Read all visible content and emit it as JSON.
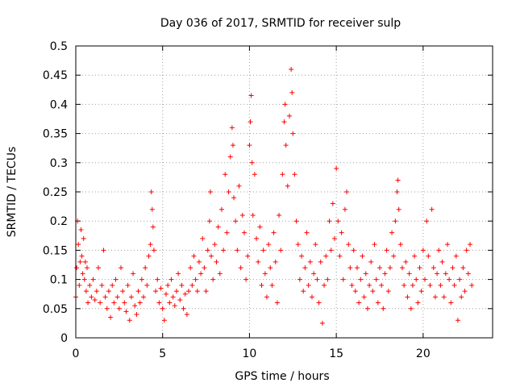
{
  "chart_data": {
    "type": "scatter",
    "title": "Day 036 of 2017, SRMTID for receiver sulp",
    "xlabel": "GPS time / hours",
    "ylabel": "SRMTID / TECUs",
    "xlim": [
      0,
      24
    ],
    "ylim": [
      0,
      0.5
    ],
    "x_ticks": [
      {
        "value": 0,
        "label": "0"
      },
      {
        "value": 5,
        "label": "5"
      },
      {
        "value": 10,
        "label": "10"
      },
      {
        "value": 15,
        "label": "15"
      },
      {
        "value": 20,
        "label": "20"
      }
    ],
    "y_ticks": [
      {
        "value": 0,
        "label": "0"
      },
      {
        "value": 0.05,
        "label": "0.05"
      },
      {
        "value": 0.1,
        "label": "0.1"
      },
      {
        "value": 0.15,
        "label": "0.15"
      },
      {
        "value": 0.2,
        "label": "0.2"
      },
      {
        "value": 0.25,
        "label": "0.25"
      },
      {
        "value": 0.3,
        "label": "0.3"
      },
      {
        "value": 0.35,
        "label": "0.35"
      },
      {
        "value": 0.4,
        "label": "0.4"
      },
      {
        "value": 0.45,
        "label": "0.45"
      },
      {
        "value": 0.5,
        "label": "0.5"
      }
    ],
    "grid": true,
    "marker": "+",
    "color": "#ff0000",
    "series": [
      {
        "name": "SRMTID",
        "points": [
          [
            0.0,
            0.07
          ],
          [
            0.05,
            0.12
          ],
          [
            0.1,
            0.2
          ],
          [
            0.15,
            0.16
          ],
          [
            0.2,
            0.09
          ],
          [
            0.25,
            0.13
          ],
          [
            0.3,
            0.185
          ],
          [
            0.35,
            0.14
          ],
          [
            0.4,
            0.11
          ],
          [
            0.45,
            0.17
          ],
          [
            0.5,
            0.1
          ],
          [
            0.55,
            0.13
          ],
          [
            0.6,
            0.08
          ],
          [
            0.65,
            0.12
          ],
          [
            0.7,
            0.06
          ],
          [
            0.8,
            0.09
          ],
          [
            0.9,
            0.07
          ],
          [
            1.0,
            0.1
          ],
          [
            1.1,
            0.065
          ],
          [
            1.2,
            0.08
          ],
          [
            1.3,
            0.12
          ],
          [
            1.4,
            0.06
          ],
          [
            1.5,
            0.09
          ],
          [
            1.6,
            0.15
          ],
          [
            1.7,
            0.07
          ],
          [
            1.8,
            0.05
          ],
          [
            1.9,
            0.08
          ],
          [
            2.0,
            0.035
          ],
          [
            2.1,
            0.09
          ],
          [
            2.2,
            0.06
          ],
          [
            2.3,
            0.1
          ],
          [
            2.4,
            0.07
          ],
          [
            2.5,
            0.05
          ],
          [
            2.6,
            0.12
          ],
          [
            2.7,
            0.08
          ],
          [
            2.8,
            0.06
          ],
          [
            2.9,
            0.045
          ],
          [
            3.0,
            0.09
          ],
          [
            3.1,
            0.03
          ],
          [
            3.2,
            0.07
          ],
          [
            3.3,
            0.11
          ],
          [
            3.4,
            0.055
          ],
          [
            3.5,
            0.04
          ],
          [
            3.6,
            0.08
          ],
          [
            3.7,
            0.06
          ],
          [
            3.8,
            0.1
          ],
          [
            3.9,
            0.07
          ],
          [
            4.0,
            0.12
          ],
          [
            4.1,
            0.09
          ],
          [
            4.2,
            0.14
          ],
          [
            4.3,
            0.16
          ],
          [
            4.35,
            0.25
          ],
          [
            4.4,
            0.22
          ],
          [
            4.45,
            0.19
          ],
          [
            4.5,
            0.15
          ],
          [
            4.6,
            0.08
          ],
          [
            4.7,
            0.1
          ],
          [
            4.8,
            0.06
          ],
          [
            4.9,
            0.085
          ],
          [
            5.0,
            0.05
          ],
          [
            5.1,
            0.03
          ],
          [
            5.2,
            0.075
          ],
          [
            5.3,
            0.09
          ],
          [
            5.4,
            0.06
          ],
          [
            5.5,
            0.1
          ],
          [
            5.6,
            0.07
          ],
          [
            5.7,
            0.055
          ],
          [
            5.8,
            0.08
          ],
          [
            5.9,
            0.11
          ],
          [
            6.0,
            0.065
          ],
          [
            6.1,
            0.09
          ],
          [
            6.2,
            0.05
          ],
          [
            6.3,
            0.075
          ],
          [
            6.4,
            0.04
          ],
          [
            6.5,
            0.08
          ],
          [
            6.6,
            0.12
          ],
          [
            6.7,
            0.09
          ],
          [
            6.8,
            0.14
          ],
          [
            6.9,
            0.1
          ],
          [
            7.0,
            0.08
          ],
          [
            7.1,
            0.13
          ],
          [
            7.2,
            0.11
          ],
          [
            7.3,
            0.17
          ],
          [
            7.4,
            0.12
          ],
          [
            7.5,
            0.08
          ],
          [
            7.6,
            0.15
          ],
          [
            7.7,
            0.2
          ],
          [
            7.75,
            0.25
          ],
          [
            7.8,
            0.14
          ],
          [
            7.9,
            0.1
          ],
          [
            8.0,
            0.16
          ],
          [
            8.1,
            0.13
          ],
          [
            8.2,
            0.19
          ],
          [
            8.3,
            0.11
          ],
          [
            8.4,
            0.22
          ],
          [
            8.5,
            0.15
          ],
          [
            8.6,
            0.28
          ],
          [
            8.7,
            0.18
          ],
          [
            8.8,
            0.25
          ],
          [
            8.9,
            0.31
          ],
          [
            9.0,
            0.36
          ],
          [
            9.05,
            0.33
          ],
          [
            9.1,
            0.24
          ],
          [
            9.2,
            0.2
          ],
          [
            9.3,
            0.15
          ],
          [
            9.4,
            0.26
          ],
          [
            9.5,
            0.12
          ],
          [
            9.6,
            0.21
          ],
          [
            9.7,
            0.18
          ],
          [
            9.8,
            0.1
          ],
          [
            9.9,
            0.14
          ],
          [
            10.0,
            0.33
          ],
          [
            10.05,
            0.37
          ],
          [
            10.1,
            0.415
          ],
          [
            10.15,
            0.3
          ],
          [
            10.2,
            0.21
          ],
          [
            10.3,
            0.28
          ],
          [
            10.4,
            0.17
          ],
          [
            10.5,
            0.13
          ],
          [
            10.6,
            0.19
          ],
          [
            10.7,
            0.09
          ],
          [
            10.8,
            0.15
          ],
          [
            10.9,
            0.11
          ],
          [
            11.0,
            0.07
          ],
          [
            11.1,
            0.16
          ],
          [
            11.2,
            0.12
          ],
          [
            11.3,
            0.09
          ],
          [
            11.4,
            0.18
          ],
          [
            11.5,
            0.13
          ],
          [
            11.6,
            0.06
          ],
          [
            11.7,
            0.21
          ],
          [
            11.8,
            0.15
          ],
          [
            11.9,
            0.28
          ],
          [
            12.0,
            0.37
          ],
          [
            12.05,
            0.4
          ],
          [
            12.1,
            0.33
          ],
          [
            12.2,
            0.26
          ],
          [
            12.3,
            0.38
          ],
          [
            12.4,
            0.46
          ],
          [
            12.45,
            0.42
          ],
          [
            12.5,
            0.35
          ],
          [
            12.6,
            0.28
          ],
          [
            12.7,
            0.2
          ],
          [
            12.8,
            0.16
          ],
          [
            12.9,
            0.1
          ],
          [
            13.0,
            0.14
          ],
          [
            13.1,
            0.08
          ],
          [
            13.2,
            0.12
          ],
          [
            13.3,
            0.18
          ],
          [
            13.4,
            0.09
          ],
          [
            13.5,
            0.13
          ],
          [
            13.6,
            0.07
          ],
          [
            13.7,
            0.11
          ],
          [
            13.8,
            0.16
          ],
          [
            13.9,
            0.1
          ],
          [
            14.0,
            0.06
          ],
          [
            14.1,
            0.13
          ],
          [
            14.2,
            0.025
          ],
          [
            14.3,
            0.09
          ],
          [
            14.4,
            0.14
          ],
          [
            14.5,
            0.1
          ],
          [
            14.6,
            0.2
          ],
          [
            14.7,
            0.15
          ],
          [
            14.8,
            0.23
          ],
          [
            14.9,
            0.17
          ],
          [
            15.0,
            0.29
          ],
          [
            15.1,
            0.2
          ],
          [
            15.2,
            0.14
          ],
          [
            15.3,
            0.18
          ],
          [
            15.4,
            0.1
          ],
          [
            15.5,
            0.22
          ],
          [
            15.6,
            0.25
          ],
          [
            15.7,
            0.16
          ],
          [
            15.8,
            0.12
          ],
          [
            15.9,
            0.09
          ],
          [
            16.0,
            0.15
          ],
          [
            16.1,
            0.08
          ],
          [
            16.2,
            0.12
          ],
          [
            16.3,
            0.06
          ],
          [
            16.4,
            0.1
          ],
          [
            16.5,
            0.14
          ],
          [
            16.6,
            0.07
          ],
          [
            16.7,
            0.11
          ],
          [
            16.8,
            0.05
          ],
          [
            16.9,
            0.09
          ],
          [
            17.0,
            0.13
          ],
          [
            17.1,
            0.08
          ],
          [
            17.2,
            0.16
          ],
          [
            17.3,
            0.1
          ],
          [
            17.4,
            0.06
          ],
          [
            17.5,
            0.12
          ],
          [
            17.6,
            0.09
          ],
          [
            17.7,
            0.05
          ],
          [
            17.8,
            0.11
          ],
          [
            17.9,
            0.15
          ],
          [
            18.0,
            0.08
          ],
          [
            18.1,
            0.12
          ],
          [
            18.2,
            0.18
          ],
          [
            18.3,
            0.14
          ],
          [
            18.4,
            0.2
          ],
          [
            18.5,
            0.25
          ],
          [
            18.55,
            0.27
          ],
          [
            18.6,
            0.22
          ],
          [
            18.7,
            0.16
          ],
          [
            18.8,
            0.12
          ],
          [
            18.9,
            0.09
          ],
          [
            19.0,
            0.13
          ],
          [
            19.1,
            0.07
          ],
          [
            19.2,
            0.11
          ],
          [
            19.3,
            0.05
          ],
          [
            19.4,
            0.09
          ],
          [
            19.5,
            0.14
          ],
          [
            19.6,
            0.1
          ],
          [
            19.7,
            0.06
          ],
          [
            19.8,
            0.12
          ],
          [
            19.9,
            0.08
          ],
          [
            20.0,
            0.15
          ],
          [
            20.1,
            0.1
          ],
          [
            20.2,
            0.2
          ],
          [
            20.3,
            0.14
          ],
          [
            20.4,
            0.09
          ],
          [
            20.5,
            0.22
          ],
          [
            20.6,
            0.12
          ],
          [
            20.7,
            0.07
          ],
          [
            20.8,
            0.11
          ],
          [
            20.9,
            0.15
          ],
          [
            21.0,
            0.09
          ],
          [
            21.1,
            0.13
          ],
          [
            21.2,
            0.07
          ],
          [
            21.3,
            0.11
          ],
          [
            21.4,
            0.16
          ],
          [
            21.5,
            0.1
          ],
          [
            21.6,
            0.06
          ],
          [
            21.7,
            0.12
          ],
          [
            21.8,
            0.09
          ],
          [
            21.9,
            0.14
          ],
          [
            22.0,
            0.03
          ],
          [
            22.1,
            0.1
          ],
          [
            22.2,
            0.07
          ],
          [
            22.3,
            0.12
          ],
          [
            22.4,
            0.08
          ],
          [
            22.5,
            0.15
          ],
          [
            22.6,
            0.11
          ],
          [
            22.7,
            0.16
          ],
          [
            22.8,
            0.09
          ]
        ]
      }
    ]
  }
}
